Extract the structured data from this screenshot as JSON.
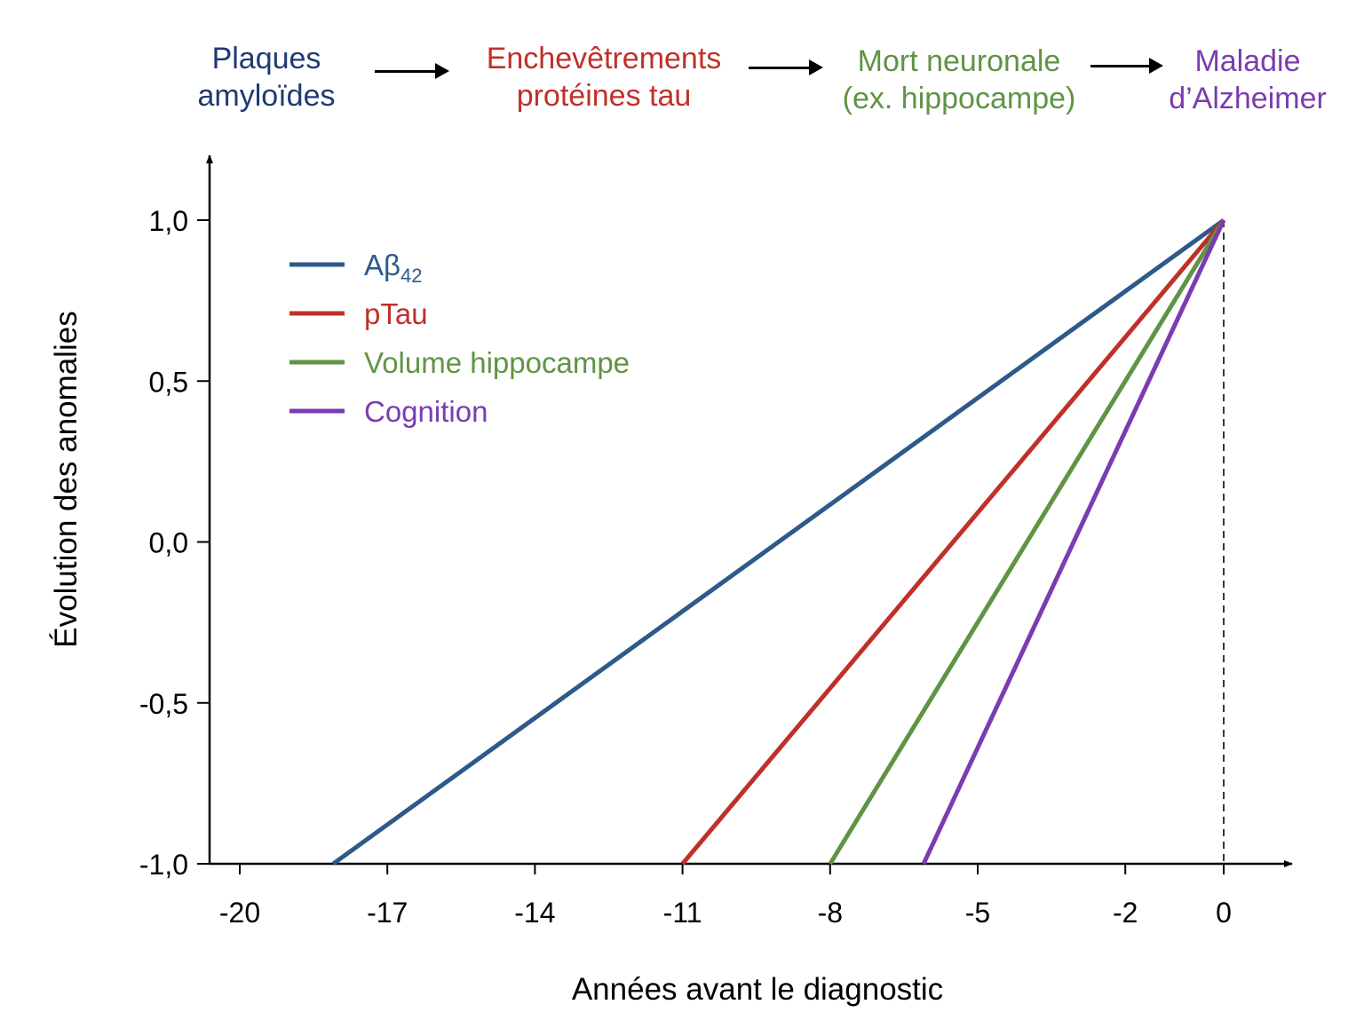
{
  "flow": {
    "steps": [
      {
        "line1": "Plaques",
        "line2": "amyloïdes",
        "color": "#1f3a73"
      },
      {
        "line1": "Enchevêtrements",
        "line2": "protéines tau",
        "color": "#c0302a"
      },
      {
        "line1": "Mort neuronale",
        "line2": "(ex. hippocampe)",
        "color": "#5f9444"
      },
      {
        "line1": "Maladie",
        "line2": "d’Alzheimer",
        "color": "#7a3cb0"
      }
    ]
  },
  "chart_data": {
    "type": "line",
    "xlabel": "Années avant le diagnostic",
    "ylabel": "Évolution des anomalies",
    "xlim": [
      -20.3,
      1.4
    ],
    "ylim": [
      -1.0,
      1.1
    ],
    "xticks": [
      -20,
      -17,
      -14,
      -11,
      -8,
      -5,
      -2,
      0
    ],
    "xtick_labels": [
      "-20",
      "-17",
      "-14",
      "-11",
      "-8",
      "-5",
      "-2",
      "0"
    ],
    "yticks": [
      1.0,
      0.5,
      0.0,
      -0.5,
      -1.0
    ],
    "ytick_labels": [
      "1,0",
      "0,5",
      "0,0",
      "-0,5",
      "-1,0"
    ],
    "grid": false,
    "legend_position": "top-left",
    "reference_line": {
      "x": 0,
      "style": "dashed"
    },
    "series": [
      {
        "name": "Aβ42",
        "legend_main": "Aβ",
        "legend_sub": "42",
        "color": "#2d5a8a",
        "x": [
          -18.1,
          0
        ],
        "y": [
          -1.0,
          1.0
        ]
      },
      {
        "name": "pTau",
        "legend_main": "pTau",
        "legend_sub": "",
        "color": "#c0302a",
        "x": [
          -11,
          0
        ],
        "y": [
          -1.0,
          1.0
        ]
      },
      {
        "name": "Volume hippocampe",
        "legend_main": "Volume hippocampe",
        "legend_sub": "",
        "color": "#5f9444",
        "x": [
          -8,
          0
        ],
        "y": [
          -1.0,
          1.0
        ]
      },
      {
        "name": "Cognition",
        "legend_main": "Cognition",
        "legend_sub": "",
        "color": "#7a3cb0",
        "x": [
          -6.1,
          0
        ],
        "y": [
          -1.0,
          1.0
        ]
      }
    ]
  }
}
